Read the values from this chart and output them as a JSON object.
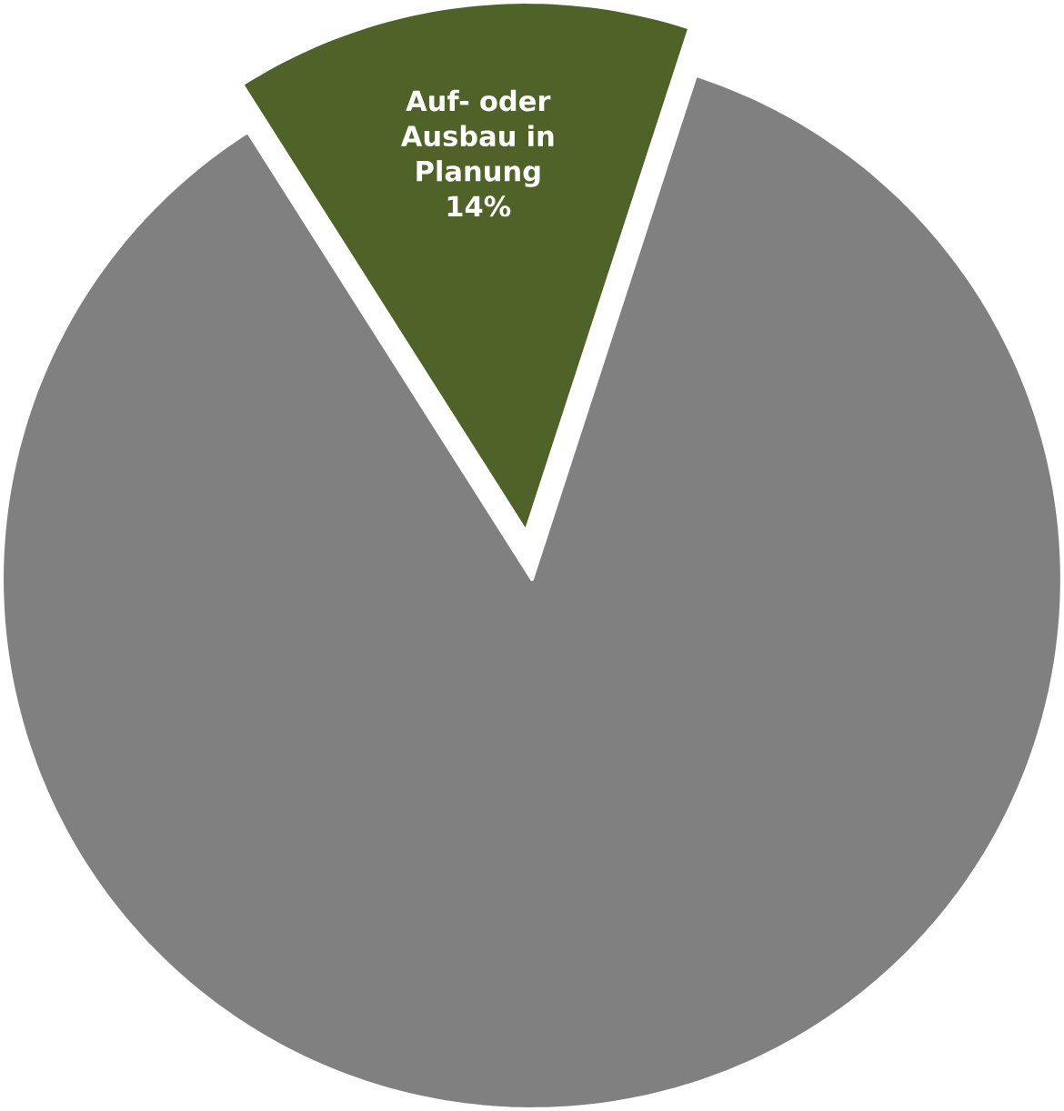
{
  "chart_data": {
    "type": "pie",
    "categories": [
      null,
      "Auf- oder Ausbau in Planung"
    ],
    "values": [
      86,
      14
    ],
    "colors": [
      "#808080",
      "#4f6228"
    ],
    "value_labels": [
      null,
      "14%"
    ]
  }
}
